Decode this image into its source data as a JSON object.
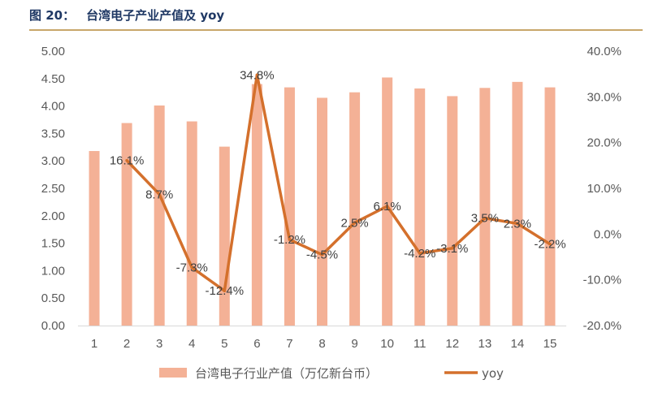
{
  "figure": {
    "label": "图 20：",
    "title": "台湾电子产业产值及 yoy"
  },
  "colors": {
    "bar": "#f4b196",
    "line": "#d4702c",
    "title": "#1f3864",
    "rule": "#c8a66a"
  },
  "chart_data": {
    "type": "bar",
    "categories": [
      "1",
      "2",
      "3",
      "4",
      "5",
      "6",
      "7",
      "8",
      "9",
      "10",
      "11",
      "12",
      "13",
      "14",
      "15"
    ],
    "series": [
      {
        "name": "台湾电子行业产值（万亿新台币）",
        "type": "bar",
        "axis": "left",
        "values": [
          3.18,
          3.69,
          4.01,
          3.72,
          3.26,
          4.4,
          4.34,
          4.15,
          4.25,
          4.52,
          4.32,
          4.18,
          4.33,
          4.44,
          4.34
        ]
      },
      {
        "name": "yoy",
        "type": "line",
        "axis": "right",
        "values": [
          null,
          16.1,
          8.7,
          -7.3,
          -12.4,
          34.8,
          -1.2,
          -4.5,
          2.5,
          6.1,
          -4.2,
          -3.1,
          3.5,
          2.3,
          -2.2
        ],
        "labels": [
          "",
          "16.1%",
          "8.7%",
          "-7.3%",
          "-12.4%",
          "34.8%",
          "-1.2%",
          "-4.5%",
          "2.5%",
          "6.1%",
          "-4.2%",
          "-3.1%",
          "3.5%",
          "2.3%",
          "-2.2%"
        ]
      }
    ],
    "y_left": {
      "min": 0,
      "max": 5,
      "step": 0.5,
      "tick_labels": [
        "0.00",
        "0.50",
        "1.00",
        "1.50",
        "2.00",
        "2.50",
        "3.00",
        "3.50",
        "4.00",
        "4.50",
        "5.00"
      ]
    },
    "y_right": {
      "min": -20,
      "max": 40,
      "step": 10,
      "tick_labels": [
        "-20.0%",
        "-10.0%",
        "0.0%",
        "10.0%",
        "20.0%",
        "30.0%",
        "40.0%"
      ]
    },
    "grid": false,
    "legend": "bottom"
  }
}
